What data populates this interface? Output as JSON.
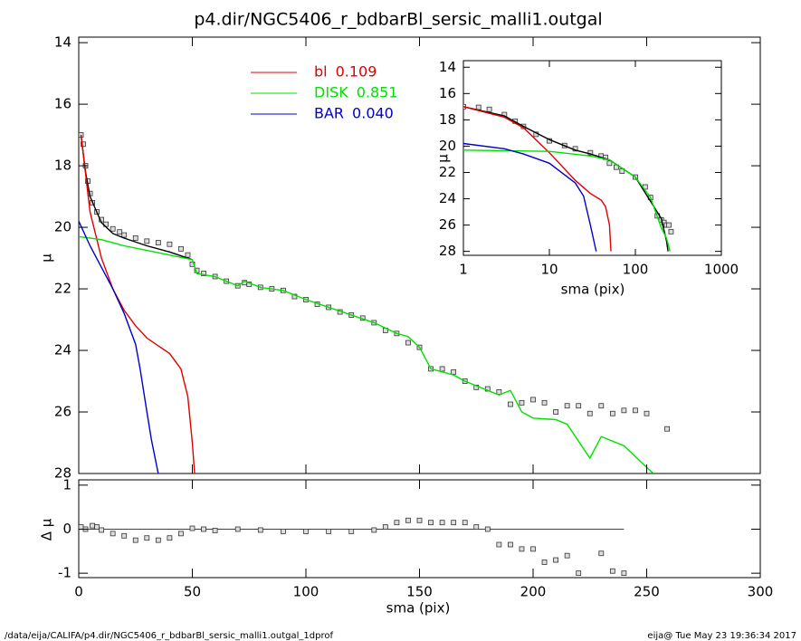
{
  "chart_data": [
    {
      "type": "line",
      "title": "p4.dir/NGC5406_r_bdbarBl_sersic_malli1.outgal",
      "ylabel": "μ",
      "xlim": [
        0,
        300
      ],
      "xticks": [
        0,
        50,
        100,
        150,
        200,
        250,
        300
      ],
      "xtick_labels": false,
      "ylim": [
        28,
        13.82
      ],
      "yticks": [
        14,
        16,
        18,
        20,
        22,
        24,
        26,
        28
      ],
      "series": [
        {
          "mode": "markers",
          "color": "#333333",
          "x": [
            1,
            2,
            3,
            4,
            5,
            6,
            8,
            10,
            12,
            15,
            18,
            20,
            25,
            30,
            35,
            40,
            45,
            48,
            50,
            52,
            55,
            60,
            65,
            70,
            73,
            75,
            80,
            85,
            90,
            95,
            100,
            105,
            110,
            115,
            120,
            125,
            130,
            135,
            140,
            145,
            150,
            155,
            160,
            165,
            170,
            175,
            180,
            185,
            190,
            195,
            200,
            205,
            210,
            215,
            220,
            225,
            230,
            235,
            240,
            245,
            250,
            259
          ],
          "values": [
            17.0,
            17.3,
            18.0,
            18.5,
            18.9,
            19.2,
            19.5,
            19.75,
            19.9,
            20.05,
            20.15,
            20.25,
            20.35,
            20.45,
            20.5,
            20.55,
            20.7,
            20.9,
            21.2,
            21.4,
            21.5,
            21.6,
            21.75,
            21.9,
            21.8,
            21.85,
            21.95,
            22.0,
            22.05,
            22.25,
            22.35,
            22.5,
            22.6,
            22.75,
            22.85,
            22.95,
            23.1,
            23.35,
            23.45,
            23.75,
            23.9,
            24.6,
            24.6,
            24.7,
            25.0,
            25.2,
            25.25,
            25.35,
            25.75,
            25.7,
            25.6,
            25.7,
            26.0,
            25.8,
            25.8,
            26.05,
            25.8,
            26.05,
            25.95,
            25.95,
            26.05,
            26.55
          ]
        },
        {
          "mode": "line",
          "color": "#000000",
          "x": [
            1,
            3,
            5,
            10,
            15,
            20,
            30,
            40,
            50
          ],
          "values": [
            17.0,
            18.2,
            19.0,
            19.85,
            20.2,
            20.35,
            20.6,
            20.8,
            21.05
          ]
        },
        {
          "mode": "line",
          "name": "bl",
          "fraction": 0.109,
          "color": "#e00000",
          "x": [
            1,
            5,
            10,
            15,
            20,
            25,
            30,
            35,
            40,
            45,
            48,
            50,
            51
          ],
          "values": [
            17.0,
            19.5,
            21.0,
            22.0,
            22.7,
            23.2,
            23.6,
            23.85,
            24.1,
            24.6,
            25.5,
            27.0,
            28.0
          ]
        },
        {
          "mode": "line",
          "name": "DISK",
          "fraction": 0.851,
          "color": "#00e000",
          "x": [
            0,
            10,
            20,
            30,
            40,
            50,
            52,
            60,
            70,
            73,
            80,
            90,
            100,
            110,
            120,
            130,
            140,
            145,
            150,
            155,
            165,
            170,
            175,
            180,
            185,
            190,
            195,
            200,
            210,
            215,
            220,
            225,
            230,
            240,
            250,
            253
          ],
          "values": [
            20.3,
            20.4,
            20.6,
            20.75,
            20.9,
            21.05,
            21.5,
            21.6,
            21.9,
            21.75,
            21.95,
            22.05,
            22.35,
            22.6,
            22.85,
            23.1,
            23.45,
            23.55,
            23.9,
            24.6,
            24.8,
            25.0,
            25.15,
            25.3,
            25.45,
            25.3,
            26.0,
            26.2,
            26.25,
            26.4,
            26.95,
            27.5,
            26.8,
            27.1,
            27.8,
            28.0
          ]
        },
        {
          "mode": "line",
          "name": "BAR",
          "fraction": {
            "value": 0.04,
            "label": "0.040"
          },
          "color": "#0000cc",
          "x": [
            0,
            5,
            10,
            15,
            20,
            25,
            27,
            30,
            32,
            35
          ],
          "values": [
            19.8,
            20.6,
            21.3,
            22.0,
            22.8,
            23.8,
            24.6,
            26.0,
            26.9,
            28.0
          ]
        }
      ]
    },
    {
      "type": "line",
      "xlabel": "sma (pix)",
      "ylabel": "μ",
      "xscale": "log",
      "xlim": [
        1,
        1000
      ],
      "xticks": [
        1,
        10,
        100,
        1000
      ],
      "ylim": [
        28.3,
        13.5
      ],
      "yticks": [
        14,
        16,
        18,
        20,
        22,
        24,
        26,
        28
      ],
      "series": [
        {
          "mode": "markers",
          "color": "#333333",
          "x": [
            1,
            1.5,
            2,
            3,
            4,
            5,
            7,
            10,
            15,
            20,
            30,
            40,
            45,
            50,
            60,
            70,
            100,
            130,
            150,
            180,
            200,
            215,
            230,
            245,
            260
          ],
          "values": [
            17.0,
            17.05,
            17.2,
            17.6,
            18.1,
            18.5,
            19.1,
            19.6,
            19.95,
            20.2,
            20.5,
            20.75,
            20.85,
            21.3,
            21.6,
            21.9,
            22.35,
            23.1,
            23.9,
            25.3,
            25.6,
            25.8,
            26.0,
            26.0,
            26.5
          ]
        },
        {
          "mode": "line",
          "color": "#000000",
          "x": [
            1,
            3,
            5,
            10,
            20,
            30,
            50,
            100,
            200,
            230,
            240
          ],
          "values": [
            17.0,
            17.7,
            18.5,
            19.5,
            20.3,
            20.6,
            21.05,
            22.35,
            25.5,
            27.2,
            28.0
          ]
        },
        {
          "mode": "line",
          "color": "#e00000",
          "x": [
            1,
            3,
            5,
            10,
            20,
            30,
            40,
            45,
            50,
            52
          ],
          "values": [
            17.0,
            17.8,
            18.6,
            20.5,
            22.6,
            23.6,
            24.1,
            24.6,
            26.0,
            28.0
          ]
        },
        {
          "mode": "line",
          "color": "#00e000",
          "x": [
            1,
            10,
            30,
            50,
            100,
            150,
            200,
            230,
            253
          ],
          "values": [
            20.3,
            20.4,
            20.75,
            21.05,
            22.35,
            23.9,
            26.2,
            27.0,
            28.0
          ]
        },
        {
          "mode": "line",
          "color": "#0000cc",
          "x": [
            1,
            3,
            5,
            10,
            20,
            25,
            30,
            35
          ],
          "values": [
            19.8,
            20.2,
            20.6,
            21.3,
            22.8,
            23.8,
            26.0,
            28.0
          ]
        }
      ]
    },
    {
      "type": "scatter",
      "xlabel": "sma (pix)",
      "ylabel": "Δ μ",
      "color": "#333333",
      "xlim": [
        0,
        300
      ],
      "xticks": [
        0,
        50,
        100,
        150,
        200,
        250,
        300
      ],
      "ylim": [
        -1.1,
        1.12
      ],
      "yticks": [
        -1,
        0,
        1
      ],
      "reference_line": 0,
      "x": [
        1,
        3,
        6,
        8,
        10,
        15,
        20,
        25,
        30,
        35,
        40,
        45,
        50,
        55,
        60,
        70,
        80,
        90,
        100,
        110,
        120,
        130,
        135,
        140,
        145,
        150,
        155,
        160,
        165,
        170,
        175,
        180,
        185,
        190,
        195,
        200,
        205,
        210,
        215,
        220,
        230,
        235,
        240
      ],
      "values": [
        0.05,
        0.0,
        0.08,
        0.05,
        -0.02,
        -0.1,
        -0.15,
        -0.25,
        -0.2,
        -0.25,
        -0.2,
        -0.1,
        0.02,
        0.0,
        -0.03,
        0.0,
        -0.02,
        -0.05,
        -0.05,
        -0.05,
        -0.05,
        -0.02,
        0.05,
        0.15,
        0.2,
        0.2,
        0.15,
        0.15,
        0.15,
        0.15,
        0.05,
        0.0,
        -0.35,
        -0.35,
        -0.45,
        -0.45,
        -0.75,
        -0.7,
        -0.6,
        -1.0,
        -0.55,
        -0.95,
        -1.0
      ]
    }
  ],
  "footer": {
    "left": "/data/eija/CALIFA/p4.dir/NGC5406_r_bdbarBl_sersic_malli1.outgal_1dprof",
    "right": "eija@  Tue May 23 19:36:34 2017"
  }
}
